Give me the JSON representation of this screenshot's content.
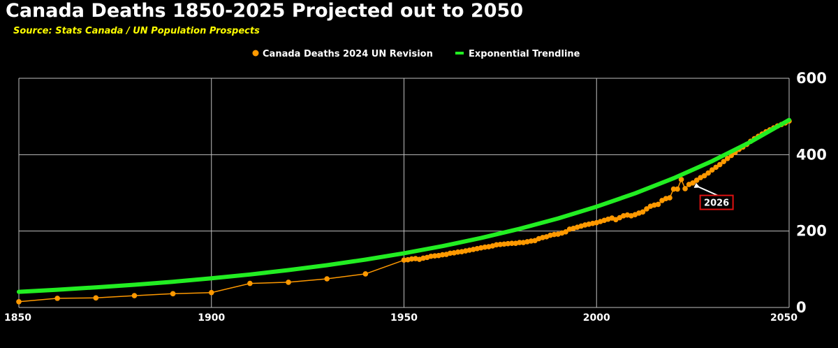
{
  "colors": {
    "background": "#000000",
    "grid": "#bfbfbf",
    "deaths": "#ff9900",
    "trend": "#22ee22",
    "title": "#ffffff",
    "subtitle": "#ffff00",
    "annotation_border": "#dd1111"
  },
  "chart_data": {
    "type": "line",
    "title": "Canada Deaths 1850-2025 Projected out to 2050",
    "subtitle": "Source: Stats Canada / UN Population Prospects",
    "xlabel": "",
    "ylabel": "",
    "xlim": [
      1850,
      2050
    ],
    "ylim": [
      0,
      600
    ],
    "x_ticks": [
      1850,
      1900,
      1950,
      2000,
      2050
    ],
    "y_ticks": [
      0,
      200,
      400,
      600
    ],
    "y_axis_side": "right",
    "grid": true,
    "legend_position": "top-center",
    "series": [
      {
        "name": "Canada Deaths 2024 UN Revision",
        "style": "line-with-markers",
        "x": [
          1850,
          1860,
          1870,
          1880,
          1890,
          1900,
          1910,
          1920,
          1930,
          1940,
          1950,
          1951,
          1952,
          1953,
          1954,
          1955,
          1956,
          1957,
          1958,
          1959,
          1960,
          1961,
          1962,
          1963,
          1964,
          1965,
          1966,
          1967,
          1968,
          1969,
          1970,
          1971,
          1972,
          1973,
          1974,
          1975,
          1976,
          1977,
          1978,
          1979,
          1980,
          1981,
          1982,
          1983,
          1984,
          1985,
          1986,
          1987,
          1988,
          1989,
          1990,
          1991,
          1992,
          1993,
          1994,
          1995,
          1996,
          1997,
          1998,
          1999,
          2000,
          2001,
          2002,
          2003,
          2004,
          2005,
          2006,
          2007,
          2008,
          2009,
          2010,
          2011,
          2012,
          2013,
          2014,
          2015,
          2016,
          2017,
          2018,
          2019,
          2020,
          2021,
          2022,
          2023,
          2024,
          2025,
          2026,
          2027,
          2028,
          2029,
          2030,
          2031,
          2032,
          2033,
          2034,
          2035,
          2036,
          2037,
          2038,
          2039,
          2040,
          2041,
          2042,
          2043,
          2044,
          2045,
          2046,
          2047,
          2048,
          2049,
          2050
        ],
        "y": [
          15,
          24,
          25,
          31,
          36,
          39,
          63,
          66,
          75,
          88,
          124,
          125,
          127,
          128,
          126,
          129,
          131,
          134,
          135,
          136,
          138,
          139,
          142,
          143,
          145,
          146,
          148,
          150,
          152,
          154,
          156,
          158,
          159,
          161,
          164,
          165,
          166,
          167,
          168,
          168,
          170,
          170,
          172,
          174,
          175,
          180,
          183,
          185,
          189,
          191,
          192,
          195,
          198,
          205,
          207,
          210,
          213,
          216,
          218,
          220,
          222,
          225,
          228,
          231,
          234,
          230,
          235,
          240,
          242,
          240,
          243,
          247,
          250,
          258,
          265,
          268,
          270,
          280,
          285,
          287,
          310,
          310,
          335,
          311,
          322,
          326,
          333,
          340,
          345,
          352,
          360,
          367,
          374,
          382,
          390,
          398,
          406,
          414,
          420,
          427,
          435,
          442,
          448,
          454,
          460,
          465,
          470,
          475,
          479,
          483,
          488
        ]
      },
      {
        "name": "Exponential Trendline",
        "style": "line",
        "x": [
          1850,
          1860,
          1870,
          1880,
          1890,
          1900,
          1910,
          1920,
          1930,
          1940,
          1950,
          1960,
          1970,
          1980,
          1990,
          2000,
          2010,
          2020,
          2030,
          2040,
          2050
        ],
        "y": [
          41.0,
          46.4,
          52.6,
          59.5,
          67.4,
          76.3,
          86.4,
          97.8,
          110.7,
          125.3,
          141.9,
          160.6,
          181.9,
          205.9,
          233.1,
          263.9,
          298.8,
          338.3,
          383.0,
          433.6,
          490.9
        ],
        "y_note": "visual"
      }
    ],
    "annotations": [
      {
        "text": "2026",
        "x": 2026,
        "y": 319
      }
    ]
  }
}
